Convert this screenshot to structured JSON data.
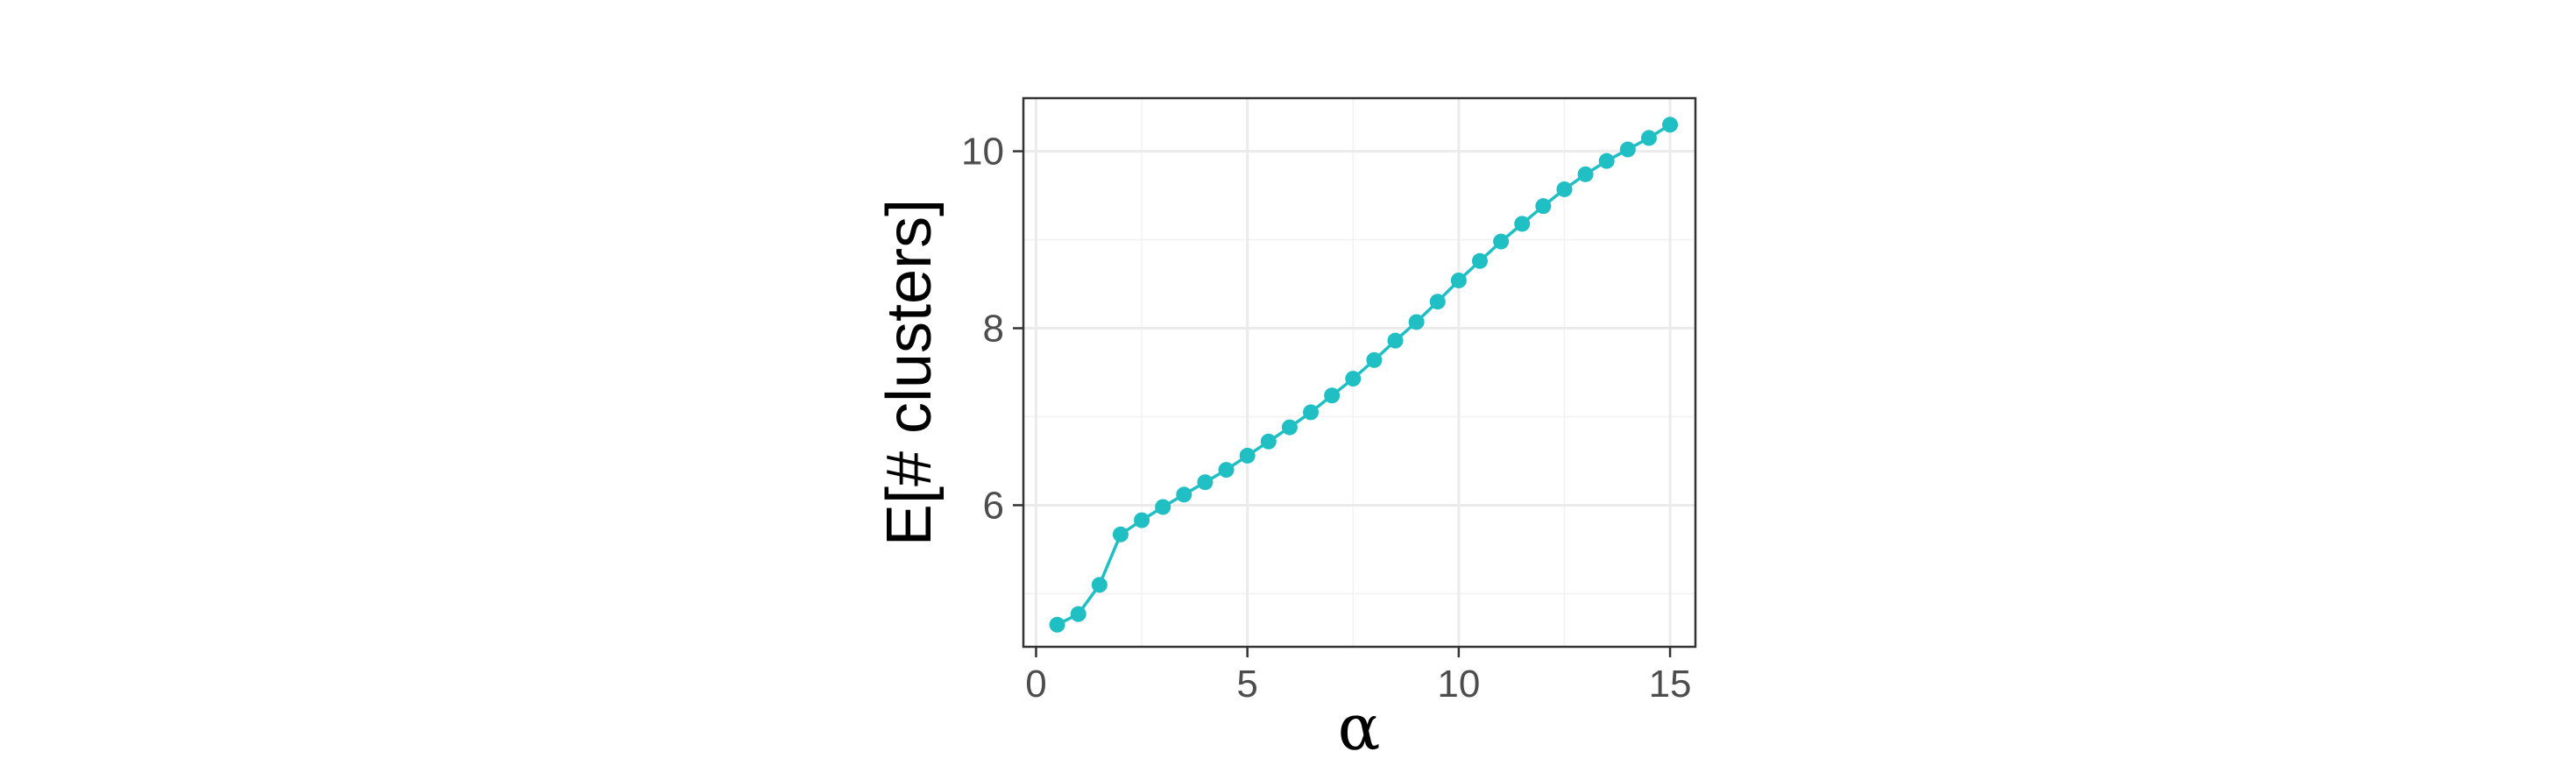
{
  "chart_data": {
    "type": "line",
    "title": "",
    "xlabel": "α",
    "ylabel": "E[# clusters]",
    "xlim": [
      -0.3,
      15.6
    ],
    "ylim": [
      4.4,
      10.6
    ],
    "x_ticks": [
      0,
      5,
      10,
      15
    ],
    "y_ticks": [
      6,
      8,
      10
    ],
    "x_minor": [
      2.5,
      7.5,
      12.5
    ],
    "y_minor": [
      5,
      7,
      9
    ],
    "grid": true,
    "legend": "none",
    "series": [
      {
        "color": "#1fbfc3",
        "marker": "circle",
        "x": [
          0.5,
          1.0,
          1.5,
          2.0,
          2.5,
          3.0,
          3.5,
          4.0,
          4.5,
          5.0,
          5.5,
          6.0,
          6.5,
          7.0,
          7.5,
          8.0,
          8.5,
          9.0,
          9.5,
          10.0,
          10.5,
          11.0,
          11.5,
          12.0,
          12.5,
          13.0,
          13.5,
          14.0,
          14.5,
          15.0
        ],
        "y": [
          4.65,
          4.77,
          5.1,
          5.67,
          5.83,
          5.98,
          6.12,
          6.26,
          6.4,
          6.56,
          6.72,
          6.88,
          7.05,
          7.24,
          7.43,
          7.64,
          7.86,
          8.07,
          8.3,
          8.54,
          8.76,
          8.98,
          9.18,
          9.38,
          9.57,
          9.74,
          9.89,
          10.02,
          10.15,
          10.3
        ]
      }
    ]
  }
}
